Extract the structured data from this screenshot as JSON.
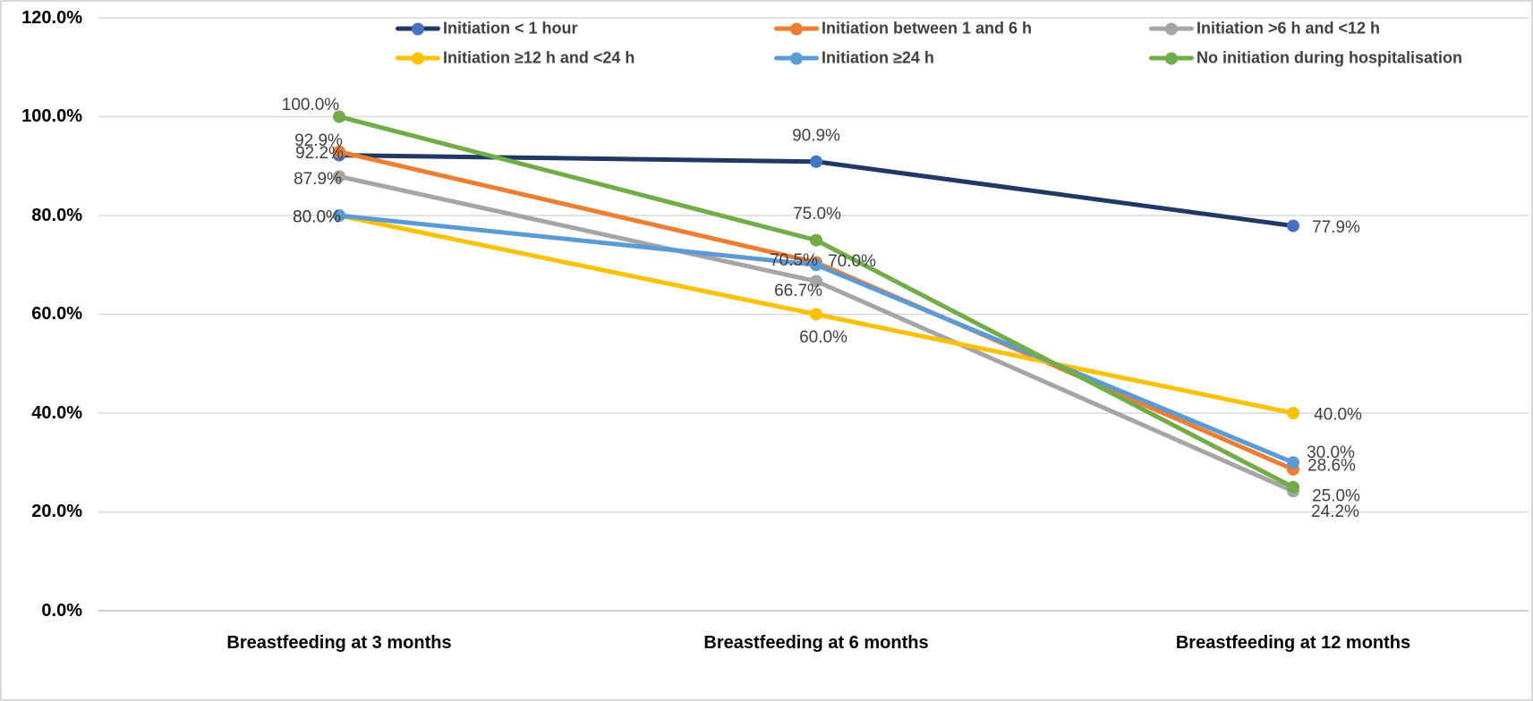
{
  "chart_data": {
    "type": "line",
    "title": "",
    "categories": [
      "Breastfeeding at 3 months",
      "Breastfeeding at 6 months",
      "Breastfeeding at 12 months"
    ],
    "yticks": [
      "120.0%",
      "100.0%",
      "80.0%",
      "60.0%",
      "40.0%",
      "20.0%",
      "0.0%"
    ],
    "ylim": [
      0,
      120
    ],
    "ytick_step": 20,
    "grid": true,
    "legend_position": "top",
    "gridline_color": "#d9d9d9",
    "axis_line_color": "#bfbfbf",
    "data_label_color": "#404040",
    "series": [
      {
        "name": "Initiation < 1 hour",
        "color": "#1f3864",
        "marker_color": "#4472c4",
        "values": [
          92.2,
          90.9,
          77.9
        ],
        "labels": [
          "92.2%",
          "90.9%",
          "77.9%"
        ],
        "label_offsets": [
          [
            -22,
            -2
          ],
          [
            0,
            -29
          ],
          [
            48,
            2
          ]
        ]
      },
      {
        "name": "Initiation between 1 and 6 h",
        "color": "#ed7d31",
        "marker_color": "#ed7d31",
        "values": [
          92.9,
          70.5,
          28.6
        ],
        "labels": [
          "92.9%",
          "70.5%",
          "28.6%"
        ],
        "label_offsets": [
          [
            -23,
            -12
          ],
          [
            -25,
            -2
          ],
          [
            43,
            -4
          ]
        ]
      },
      {
        "name": "Initiation >6 h and <12 h",
        "color": "#a5a5a5",
        "marker_color": "#a5a5a5",
        "values": [
          87.9,
          66.7,
          24.2
        ],
        "labels": [
          "87.9%",
          "66.7%",
          "24.2%"
        ],
        "label_offsets": [
          [
            -24,
            3
          ],
          [
            -20,
            11
          ],
          [
            47,
            23
          ]
        ]
      },
      {
        "name": "Initiation ≥12 h and <24 h",
        "color": "#ffc000",
        "marker_color": "#ffc000",
        "values": [
          80.0,
          60.0,
          40.0
        ],
        "labels": [
          "80.0%",
          "60.0%",
          "40.0%"
        ],
        "label_offsets": [
          [
            -25,
            2
          ],
          [
            8,
            26
          ],
          [
            50,
            2
          ]
        ]
      },
      {
        "name": "Initiation ≥24 h",
        "color": "#5b9bd5",
        "marker_color": "#5b9bd5",
        "values": [
          80.0,
          70.0,
          30.0
        ],
        "labels": [
          "80.0%",
          "70.0%",
          "30.0%"
        ],
        "label_offsets": [
          [
            -25,
            2
          ],
          [
            40,
            -4
          ],
          [
            42,
            -11
          ]
        ]
      },
      {
        "name": "No initiation during hospitalisation",
        "color": "#70ad47",
        "marker_color": "#70ad47",
        "values": [
          100.0,
          75.0,
          25.0
        ],
        "labels": [
          "100.0%",
          "75.0%",
          "25.0%"
        ],
        "label_offsets": [
          [
            -32,
            -13
          ],
          [
            1,
            -29
          ],
          [
            48,
            10
          ]
        ]
      }
    ]
  }
}
